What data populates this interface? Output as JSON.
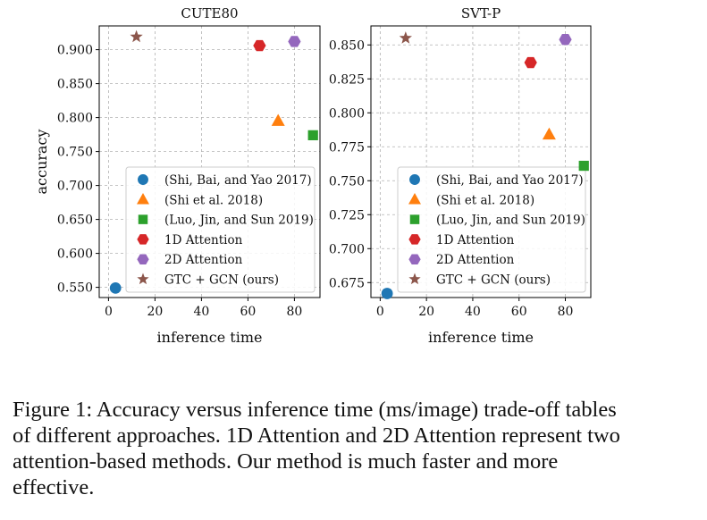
{
  "chart_data": [
    {
      "type": "scatter",
      "title": "CUTE80",
      "xlabel": "inference time",
      "ylabel": "accuracy",
      "xlim": [
        -4,
        91
      ],
      "ylim": [
        0.535,
        0.935
      ],
      "xticks": [
        0,
        20,
        40,
        60,
        80
      ],
      "yticks": [
        0.55,
        0.6,
        0.65,
        0.7,
        0.75,
        0.8,
        0.85,
        0.9
      ],
      "ytick_labels": [
        "0.550",
        "0.600",
        "0.650",
        "0.700",
        "0.750",
        "0.800",
        "0.850",
        "0.900"
      ],
      "grid": true,
      "legend_position": "bottom-right",
      "series": [
        {
          "name": "(Shi, Bai, and Yao 2017)",
          "marker": "circle",
          "color": "#1f77b4",
          "x": 3,
          "y": 0.549
        },
        {
          "name": "(Shi et al. 2018)",
          "marker": "triangle",
          "color": "#ff7f0e",
          "x": 73,
          "y": 0.795
        },
        {
          "name": "(Luo, Jin, and Sun 2019)",
          "marker": "square",
          "color": "#2ca02c",
          "x": 88,
          "y": 0.774
        },
        {
          "name": "1D Attention",
          "marker": "hexagon",
          "color": "#d62728",
          "x": 65,
          "y": 0.906
        },
        {
          "name": "2D Attention",
          "marker": "hexagon",
          "color": "#9467bd",
          "x": 80,
          "y": 0.912
        },
        {
          "name": "GTC + GCN (ours)",
          "marker": "star",
          "color": "#8c564b",
          "x": 12,
          "y": 0.919
        }
      ]
    },
    {
      "type": "scatter",
      "title": "SVT-P",
      "xlabel": "inference time",
      "ylabel": "",
      "xlim": [
        -4,
        91
      ],
      "ylim": [
        0.664,
        0.864
      ],
      "xticks": [
        0,
        20,
        40,
        60,
        80
      ],
      "yticks": [
        0.675,
        0.7,
        0.725,
        0.75,
        0.775,
        0.8,
        0.825,
        0.85
      ],
      "ytick_labels": [
        "0.675",
        "0.700",
        "0.725",
        "0.750",
        "0.775",
        "0.800",
        "0.825",
        "0.850"
      ],
      "grid": true,
      "legend_position": "bottom-right",
      "series": [
        {
          "name": "(Shi, Bai, and Yao 2017)",
          "marker": "circle",
          "color": "#1f77b4",
          "x": 3,
          "y": 0.667
        },
        {
          "name": "(Shi et al. 2018)",
          "marker": "triangle",
          "color": "#ff7f0e",
          "x": 73,
          "y": 0.784
        },
        {
          "name": "(Luo, Jin, and Sun 2019)",
          "marker": "square",
          "color": "#2ca02c",
          "x": 88,
          "y": 0.761
        },
        {
          "name": "1D Attention",
          "marker": "hexagon",
          "color": "#d62728",
          "x": 65,
          "y": 0.837
        },
        {
          "name": "2D Attention",
          "marker": "hexagon",
          "color": "#9467bd",
          "x": 80,
          "y": 0.854
        },
        {
          "name": "GTC + GCN (ours)",
          "marker": "star",
          "color": "#8c564b",
          "x": 11,
          "y": 0.855
        }
      ]
    }
  ],
  "caption": "Figure 1: Accuracy versus inference time (ms/image) trade-off tables of different approaches. 1D Attention and 2D Attention represent two attention-based methods. Our method is much faster and more effective."
}
